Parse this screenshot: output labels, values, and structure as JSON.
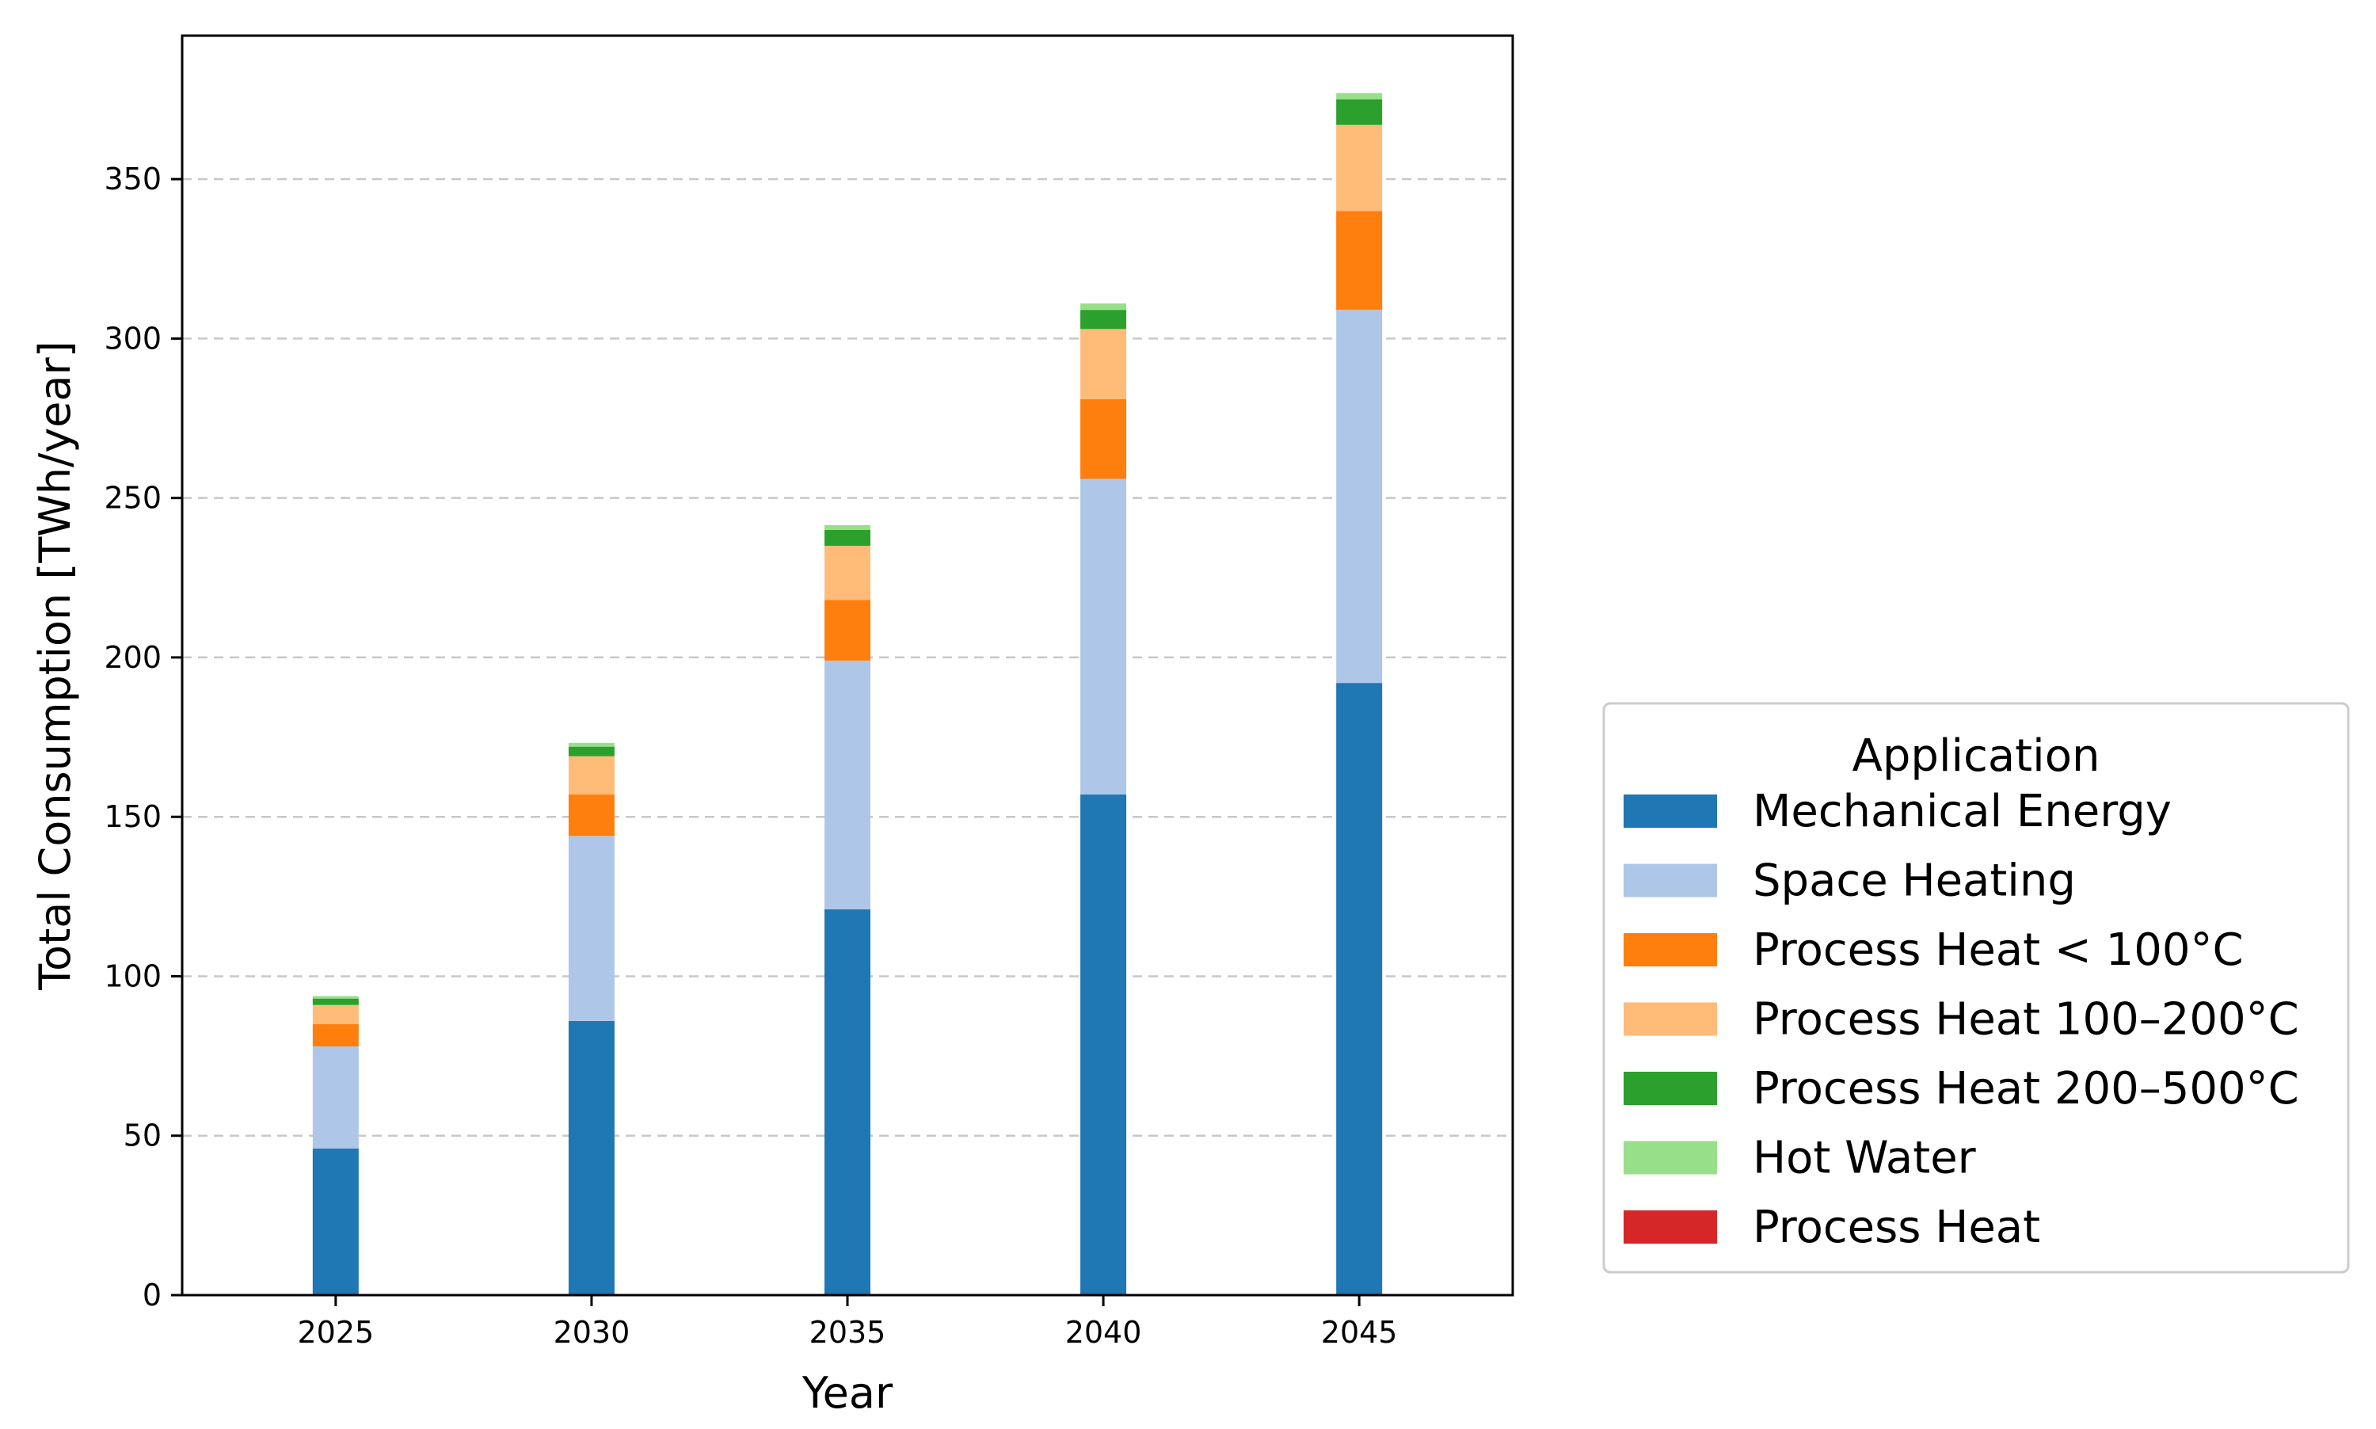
{
  "chart_data": {
    "type": "bar",
    "stacked": true,
    "title": "",
    "xlabel": "Year",
    "ylabel": "Total Consumption [TWh/year]",
    "categories": [
      "2025",
      "2030",
      "2035",
      "2040",
      "2045"
    ],
    "ylim": [
      0,
      395
    ],
    "yticks": [
      0,
      50,
      100,
      150,
      200,
      250,
      300,
      350
    ],
    "grid": "y-dashed",
    "legend": {
      "title": "Application",
      "position": "right"
    },
    "series": [
      {
        "name": "Mechanical Energy",
        "color": "#1f77b4",
        "values": [
          46,
          86,
          121,
          157,
          192
        ]
      },
      {
        "name": "Space Heating",
        "color": "#aec7e8",
        "values": [
          32,
          58,
          78,
          99,
          117
        ]
      },
      {
        "name": "Process Heat < 100°C",
        "color": "#ff7f0e",
        "values": [
          7,
          13,
          19,
          25,
          31
        ]
      },
      {
        "name": "Process Heat 100–200°C",
        "color": "#ffbb78",
        "values": [
          6,
          12,
          17,
          22,
          27
        ]
      },
      {
        "name": "Process Heat 200–500°C",
        "color": "#2ca02c",
        "values": [
          2,
          3,
          5,
          6,
          8
        ]
      },
      {
        "name": "Hot Water",
        "color": "#98df8a",
        "values": [
          0.8,
          1.2,
          1.5,
          2,
          2
        ]
      },
      {
        "name": "Process Heat",
        "color": "#d62728",
        "values": [
          0,
          0,
          0,
          0,
          0
        ]
      }
    ]
  }
}
